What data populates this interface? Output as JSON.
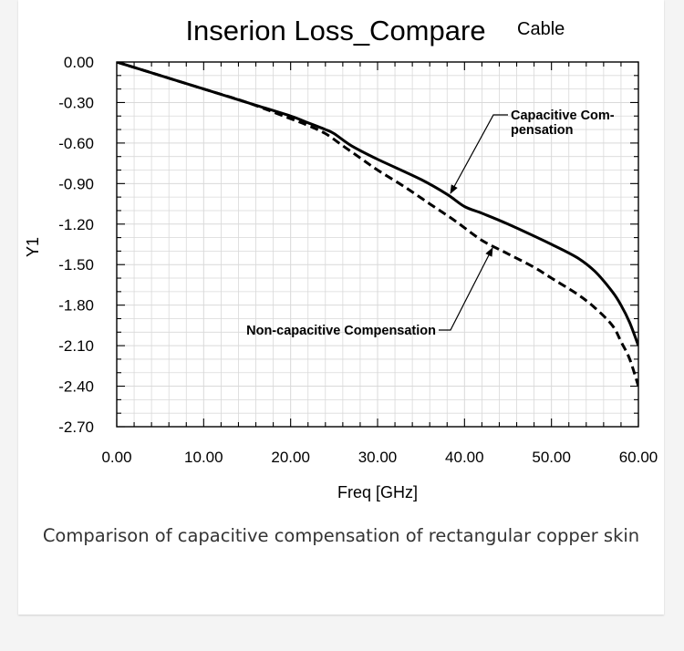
{
  "caption": "Comparison of capacitive compensation of rectangular copper skin",
  "colors": {
    "background": "#f4f4f4",
    "card": "#ffffff",
    "grid": "#d9d9d9",
    "series": "#000000",
    "caption": "#333333"
  },
  "chart_data": {
    "type": "line",
    "title": "Inserion Loss_Compare",
    "subtitle": "Cable",
    "xlabel": "Freq [GHz]",
    "ylabel": "Y1",
    "xlim": [
      0,
      60
    ],
    "ylim": [
      -2.7,
      0
    ],
    "x_ticks": [
      "0.00",
      "10.00",
      "20.00",
      "30.00",
      "40.00",
      "50.00",
      "60.00"
    ],
    "y_ticks": [
      "0.00",
      "-0.30",
      "-0.60",
      "-0.90",
      "-1.20",
      "-1.50",
      "-1.80",
      "-2.10",
      "-2.40",
      "-2.70"
    ],
    "grid": true,
    "legend": "none",
    "series": [
      {
        "style": "solid",
        "x": [
          0,
          5,
          10,
          15,
          20,
          22,
          24,
          25,
          27,
          30,
          35,
          38,
          40,
          42,
          45,
          50,
          53,
          55,
          57,
          58,
          59,
          60
        ],
        "y": [
          0,
          -0.1,
          -0.2,
          -0.3,
          -0.4,
          -0.45,
          -0.5,
          -0.53,
          -0.62,
          -0.72,
          -0.87,
          -0.98,
          -1.07,
          -1.12,
          -1.2,
          -1.35,
          -1.45,
          -1.55,
          -1.7,
          -1.8,
          -1.93,
          -2.1
        ]
      },
      {
        "style": "dashed",
        "x": [
          0,
          5,
          10,
          15,
          20,
          22,
          24,
          26,
          28,
          30,
          33,
          36,
          39,
          42,
          45,
          48,
          50,
          53,
          55,
          57,
          58,
          59,
          60
        ],
        "y": [
          0,
          -0.1,
          -0.2,
          -0.3,
          -0.42,
          -0.47,
          -0.53,
          -0.62,
          -0.71,
          -0.8,
          -0.92,
          -1.05,
          -1.18,
          -1.32,
          -1.42,
          -1.52,
          -1.6,
          -1.72,
          -1.82,
          -1.95,
          -2.07,
          -2.2,
          -2.4
        ]
      }
    ],
    "annotations": [
      {
        "lines": [
          "Capacitive Com-",
          "pensation"
        ],
        "target": {
          "x": 38.5,
          "y": -1.02
        }
      },
      {
        "lines": [
          "Non-capacitive Compensation"
        ],
        "target": {
          "x": 43,
          "y": -1.36
        }
      }
    ]
  }
}
